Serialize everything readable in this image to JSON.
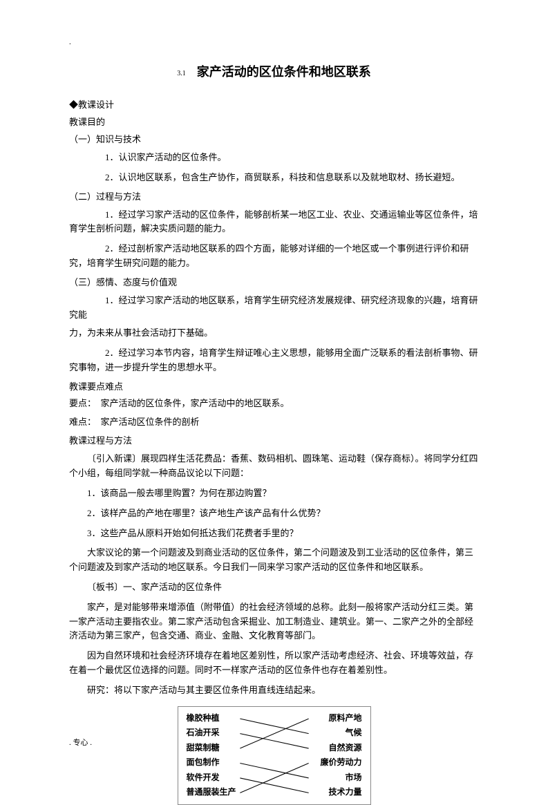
{
  "top_dot": ".",
  "title": {
    "prefix": "3.1",
    "main": "家产活动的区位条件和地区联系"
  },
  "section_design": "◆教课设计",
  "section_goal": "教课目的",
  "h1": "（一）知识与技术",
  "h1_1": "1．认识家产活动的区位条件。",
  "h1_2": "2．认识地区联系，包含生产协作，商贸联系，科技和信息联系以及就地取材、扬长避短。",
  "h2": "（二）过程与方法",
  "h2_1": "1．经过学习家产活动的区位条件，能够剖析某一地区工业、农业、交通运输业等区位条件，培育学生剖析问题，解决实质问题的能力。",
  "h2_2": "2．经过剖析家产活动地区联系的四个方面，能够对详细的一个地区或一个事例进行评价和研究，培育学生研究问题的能力。",
  "h3": "（三）感情、态度与价值观",
  "h3_1": "1．经过学习家产活动的地区联系，培育学生研究经济发展规律、研究经济现象的兴趣，培育研究能",
  "h3_1b": "力，为未来从事社会活动打下基础。",
  "h3_2": "2．经过学习本节内容，培育学生辩证唯心主义思想，能够用全面广泛联系的看法剖析事物、研究事物，进一步提升学生的思想水平。",
  "section_points": "教课要点难点",
  "points_1": "要点：　家产活动的区位条件，家产活动中的地区联系。",
  "points_2": "难点：　家产活动区位条件的剖析",
  "section_process": "教课过程与方法",
  "intro": "〔引入新课〕展现四样生活花费品：香蕉、数码相机、圆珠笔、运动鞋（保存商标）。将同学分红四个小组，每组同学就一种商品议论以下问题：",
  "q1": "1．该商品一般去哪里购置？为何在那边购置？",
  "q2": "2．该样产品的产地在哪里？该产地生产该产品有什么优势？",
  "q3": "3．这些产品从原料开始如何抵达我们花费者手里的？",
  "discuss": "大家议论的第一个问题波及到商业活动的区位条件，第二个问题波及到工业活动的区位条件，第三个问题波及到家产活动的地区联系。今日我们一同来学习家产活动的区位条件和地区联系。",
  "board": "〔板书〕一、家产活动的区位条件",
  "industry": "家产，是对能够带来增添值（附带值）的社会经济领域的总称。此刻一般将家产活动分红三类。第一家产活动主要指农业。第二家产活动包含采掘业、加工制造业、建筑业。第一、二家产之外的全部经济活动为第三家产，包含交通、商业、金融、文化教育等部门。",
  "because": "因为自然环境和社会经济环境存在着地区差别性，所以家产活动考虑经济、社会、环境等效益，存在着一个最优区位选择的问题。同时不一样家产活动的区位条件也存在着差别性。",
  "research": "研究：将以下家产活动与其主要区位条件用直线连结起来。",
  "diagram": {
    "left": [
      "橡胶种植",
      "石油开采",
      "甜菜制糖",
      "面包制作",
      "软件开发",
      "普通服装生产"
    ],
    "right": [
      "原料产地",
      "气候",
      "自然资源",
      "廉价劳动力",
      "市场",
      "技术力量"
    ],
    "lines": [
      {
        "from": 0,
        "to": 1
      },
      {
        "from": 1,
        "to": 2
      },
      {
        "from": 2,
        "to": 0
      },
      {
        "from": 3,
        "to": 4
      },
      {
        "from": 4,
        "to": 5
      },
      {
        "from": 5,
        "to": 3
      }
    ],
    "line_color": "#000000"
  },
  "footer": ". 专心 ."
}
